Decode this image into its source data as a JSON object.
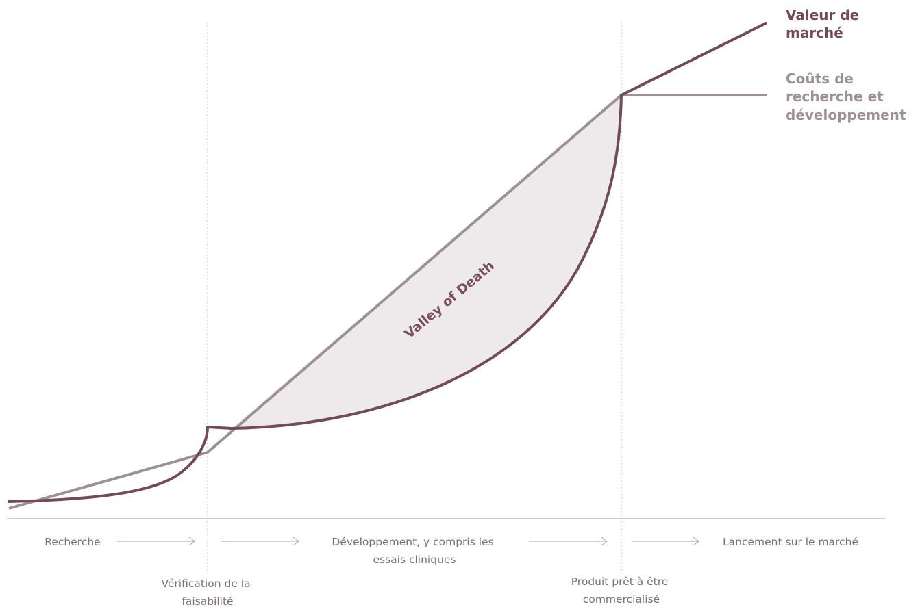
{
  "colors": {
    "market_value": "#734a58",
    "rd_costs": "#9d9194",
    "valley_fill": "#eeeaec",
    "axis": "#a8a2a4",
    "dotted_line": "#bdb7b9",
    "arrow": "#a8a2a4"
  },
  "legend": {
    "market_value_line1": "Valeur de",
    "market_value_line2": "marché",
    "rd_costs_line1": "Coûts de",
    "rd_costs_line2": "recherche et",
    "rd_costs_line3": "développement"
  },
  "valley_label": "Valley of Death",
  "phases": {
    "research": "Recherche",
    "development_line1": "Développement, y compris les",
    "development_line2": "essais cliniques",
    "launch": "Lancement sur le marché"
  },
  "milestones": {
    "feasibility_line1": "Vérification de la",
    "feasibility_line2": "faisabilité",
    "ready_line1": "Produit prêt à être",
    "ready_line2": "commercialisé"
  }
}
